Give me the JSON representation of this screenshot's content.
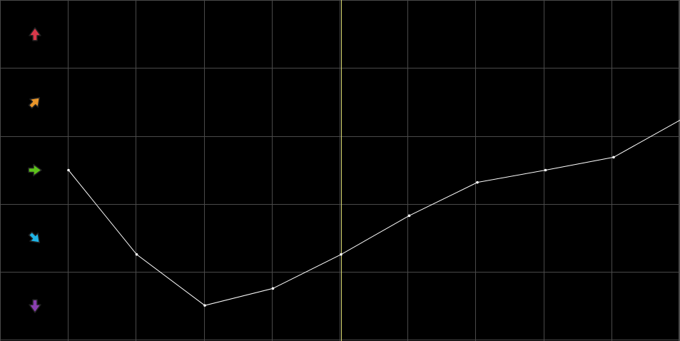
{
  "chart_data": {
    "type": "line",
    "x": [
      0,
      1,
      2,
      3,
      4,
      5,
      6,
      7,
      8,
      9
    ],
    "values": [
      0,
      -1.24,
      -1.99,
      -1.74,
      -1.24,
      -0.67,
      -0.18,
      0,
      0.19,
      0.75
    ],
    "ylim": [
      -2.5,
      2.5
    ],
    "xlim": [
      -1,
      9
    ],
    "grid": true,
    "highlight_x": 4,
    "row_levels": [
      {
        "level": 2,
        "icon": "arrow-up-icon",
        "color": "#d8384a"
      },
      {
        "level": 1,
        "icon": "arrow-up-right-icon",
        "color": "#e8952a"
      },
      {
        "level": 0,
        "icon": "arrow-right-icon",
        "color": "#5cc21a"
      },
      {
        "level": -1,
        "icon": "arrow-down-right-icon",
        "color": "#1fb4e6"
      },
      {
        "level": -2,
        "icon": "arrow-down-icon",
        "color": "#8a3fb0"
      }
    ],
    "colors": {
      "background": "#000000",
      "grid": "#4a4a4a",
      "line": "#ffffff",
      "highlight": "#d8d870"
    }
  }
}
